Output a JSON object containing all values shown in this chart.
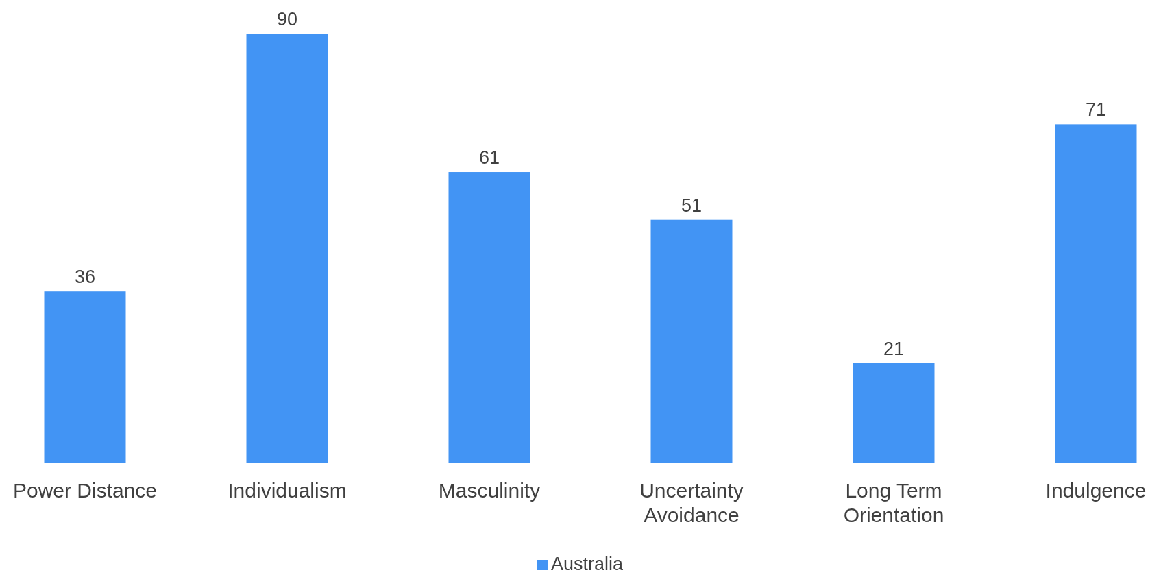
{
  "chart_data": {
    "type": "bar",
    "categories": [
      "Power Distance",
      "Individualism",
      "Masculinity",
      "Uncertainty Avoidance",
      "Long Term Orientation",
      "Indulgence"
    ],
    "series": [
      {
        "name": "Australia",
        "color": "#4294f4",
        "values": [
          36,
          90,
          61,
          51,
          21,
          71
        ]
      }
    ],
    "data_labels": true,
    "legend": "bottom"
  }
}
